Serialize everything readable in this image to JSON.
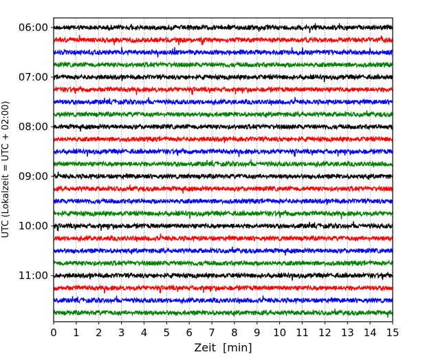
{
  "chart_data": {
    "type": "line",
    "subtype": "helicorder",
    "title": "",
    "xlabel": "Zeit  [min]",
    "ylabel": "UTC (Lokalzeit = UTC + 02:00)",
    "xlim": [
      0,
      15
    ],
    "x_ticks": [
      "0",
      "1",
      "2",
      "3",
      "4",
      "5",
      "6",
      "7",
      "8",
      "9",
      "10",
      "11",
      "12",
      "13",
      "14",
      "15"
    ],
    "y_tick_labels": [
      "06:00",
      "07:00",
      "08:00",
      "09:00",
      "10:00",
      "11:00"
    ],
    "row_interval_min": 15,
    "rows": [
      "06:00",
      "06:15",
      "06:30",
      "06:45",
      "07:00",
      "07:15",
      "07:30",
      "07:45",
      "08:00",
      "08:15",
      "08:30",
      "08:45",
      "09:00",
      "09:15",
      "09:30",
      "09:45",
      "10:00",
      "10:15",
      "10:30",
      "10:45",
      "11:00",
      "11:15",
      "11:30",
      "11:45"
    ],
    "colors": [
      "#000000",
      "#ff0000",
      "#0000ff",
      "#008000"
    ],
    "grid": "vertical dotted",
    "legend": "none"
  }
}
